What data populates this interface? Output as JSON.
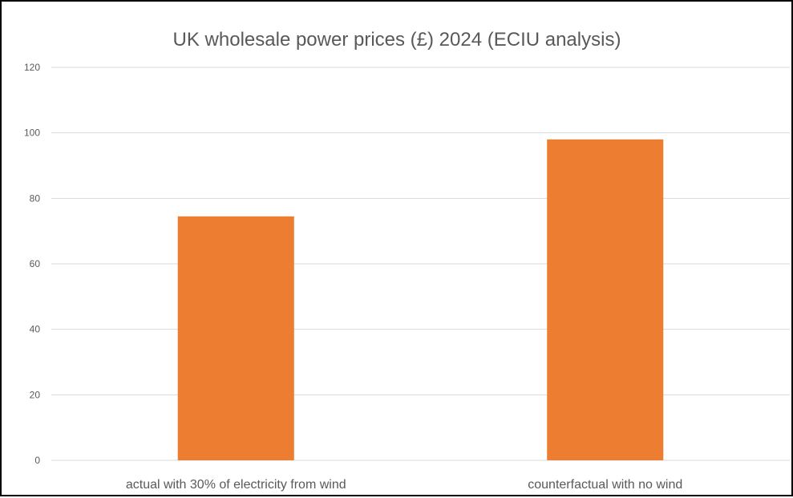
{
  "chart_data": {
    "type": "bar",
    "title": "UK wholesale power prices (£) 2024 (ECIU analysis)",
    "categories": [
      "actual with 30% of electricity from wind",
      "counterfactual with no wind"
    ],
    "values": [
      74.5,
      98
    ],
    "ylim": [
      0,
      120
    ],
    "yticks": [
      0,
      20,
      40,
      60,
      80,
      100,
      120
    ],
    "xlabel": "",
    "ylabel": "",
    "grid": true,
    "legend": "none",
    "bar_color": "#ED7D31",
    "grid_color": "#D9D9D9",
    "text_color": "#595959"
  }
}
